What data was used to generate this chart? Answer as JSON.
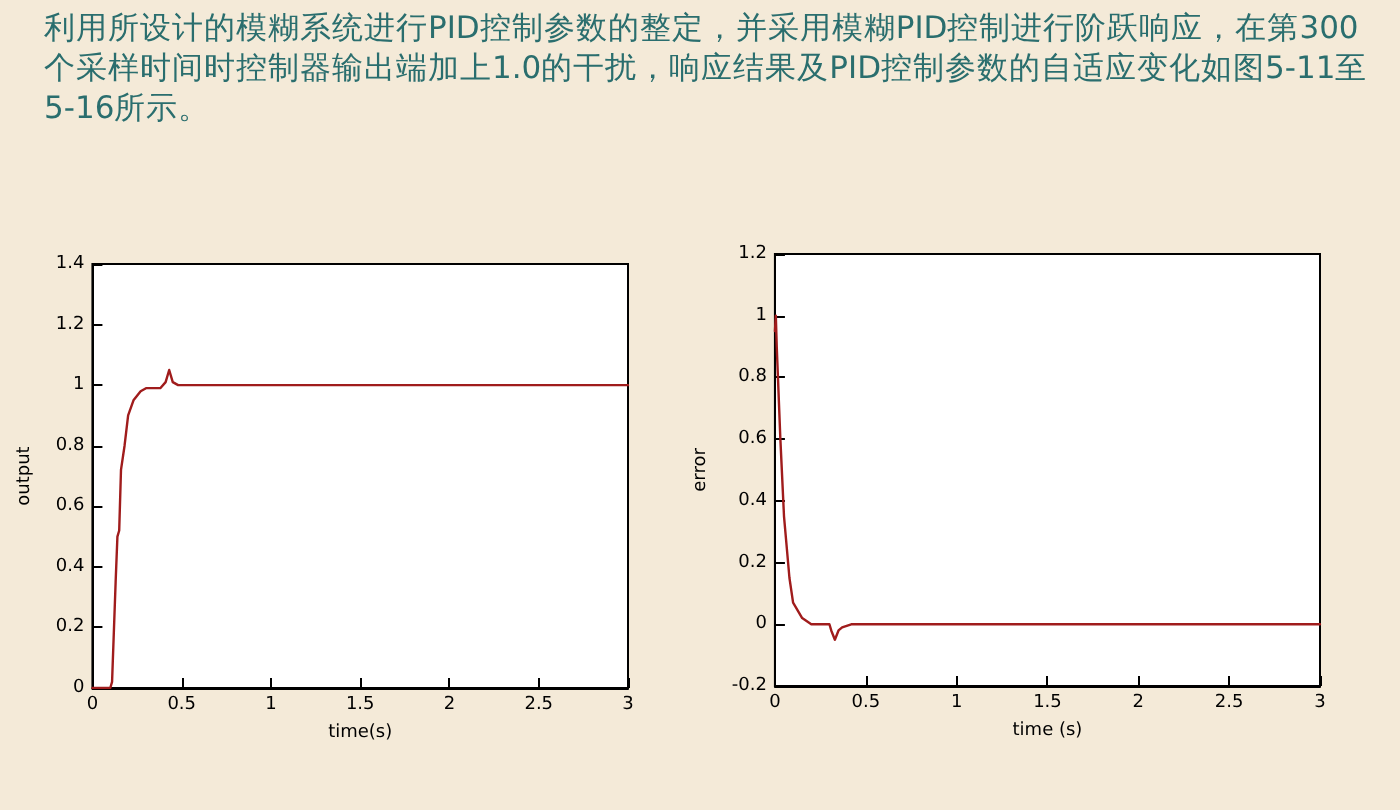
{
  "chart_data": [
    {
      "type": "other",
      "annotations": [
        "利用所设计的模糊系统进行PID控制参数的整定，并采用模糊PID控制进行阶跃响应，在第300个采样时间时控制器输出端加上1.0的干扰，响应结果及PID控制参数的自适应变化如图5-11至5-16所示。"
      ]
    },
    {
      "type": "line",
      "xlabel": "time(s)",
      "ylabel": "output",
      "xlim": [
        0,
        3
      ],
      "xticks": [
        0,
        0.5,
        1,
        1.5,
        2,
        2.5,
        3
      ],
      "ylim": [
        0,
        1.4
      ],
      "yticks": [
        0,
        0.2,
        0.4,
        0.6,
        0.8,
        1,
        1.2,
        1.4
      ],
      "grid": false,
      "marker": "none",
      "line_style": "solid",
      "series": [
        {
          "color": "#a01c1c",
          "x": [
            0,
            0.1,
            0.11,
            0.13,
            0.14,
            0.15,
            0.16,
            0.18,
            0.2,
            0.23,
            0.27,
            0.3,
            0.38,
            0.41,
            0.43,
            0.45,
            0.48,
            3
          ],
          "values": [
            0,
            0,
            0.02,
            0.35,
            0.5,
            0.52,
            0.72,
            0.8,
            0.9,
            0.95,
            0.98,
            0.99,
            0.99,
            1.01,
            1.05,
            1.01,
            1,
            1
          ]
        }
      ]
    },
    {
      "type": "line",
      "xlabel": "time (s)",
      "ylabel": "error",
      "xlim": [
        0,
        3
      ],
      "xticks": [
        0,
        0.5,
        1,
        1.5,
        2,
        2.5,
        3
      ],
      "ylim": [
        -0.2,
        1.2
      ],
      "yticks": [
        -0.2,
        0,
        0.2,
        0.4,
        0.6,
        0.8,
        1,
        1.2
      ],
      "grid": false,
      "marker": "none",
      "line_style": "solid",
      "series": [
        {
          "color": "#a01c1c",
          "x": [
            0,
            0.005,
            0.01,
            0.03,
            0.05,
            0.08,
            0.1,
            0.15,
            0.2,
            0.3,
            0.31,
            0.33,
            0.35,
            0.37,
            0.42,
            3
          ],
          "values": [
            0.95,
            1,
            0.9,
            0.6,
            0.35,
            0.15,
            0.07,
            0.02,
            0,
            0,
            -0.02,
            -0.05,
            -0.02,
            -0.01,
            0,
            0
          ]
        }
      ]
    }
  ]
}
